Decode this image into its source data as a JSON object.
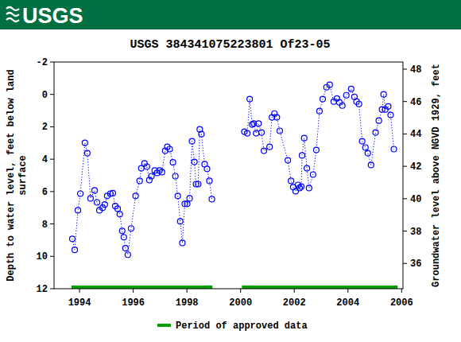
{
  "header": {
    "logo_text": "USGS"
  },
  "chart_data": {
    "type": "line",
    "title": "USGS 384341075223801 Of23-05",
    "y_label": [
      "Depth to water level, feet below land",
      "surface"
    ],
    "y2_label": "Groundwater level above NGVD 1929, feet",
    "xlim": [
      1993.05,
      2006.05
    ],
    "xticks": [
      1994,
      1996,
      1998,
      2000,
      2002,
      2004,
      2006
    ],
    "ylim": [
      12,
      -2
    ],
    "yticks": [
      -2,
      0,
      2,
      4,
      6,
      8,
      10,
      12
    ],
    "y2lim": [
      34.44,
      48.44
    ],
    "y2ticks": [
      36,
      38,
      40,
      42,
      44,
      46,
      48
    ],
    "legend": "bottom",
    "x": [
      1993.73,
      1993.82,
      1993.94,
      1994.03,
      1994.2,
      1994.29,
      1994.41,
      1994.56,
      1994.65,
      1994.74,
      1994.86,
      1994.94,
      1995.03,
      1995.15,
      1995.24,
      1995.33,
      1995.42,
      1995.5,
      1995.59,
      1995.65,
      1995.71,
      1995.8,
      1995.92,
      1996.09,
      1996.24,
      1996.3,
      1996.42,
      1996.51,
      1996.6,
      1996.68,
      1996.8,
      1996.89,
      1996.98,
      1997.07,
      1997.19,
      1997.27,
      1997.36,
      1997.48,
      1997.57,
      1997.66,
      1997.75,
      1997.83,
      1997.92,
      1998.01,
      1998.1,
      1998.19,
      1998.28,
      1998.34,
      1998.42,
      1998.48,
      1998.54,
      1998.66,
      1998.75,
      1998.84,
      1998.93,
      1999.5,
      2000.14,
      2000.25,
      2000.34,
      2000.43,
      2000.49,
      2000.58,
      2000.67,
      2000.78,
      2000.87,
      2001.08,
      2001.17,
      2001.26,
      2001.35,
      2001.46,
      2001.76,
      2001.88,
      2001.96,
      2002.05,
      2002.14,
      2002.2,
      2002.26,
      2002.29,
      2002.37,
      2002.47,
      2002.55,
      2002.7,
      2002.82,
      2002.94,
      2003.06,
      2003.2,
      2003.32,
      2003.47,
      2003.59,
      2003.68,
      2003.79,
      2003.94,
      2004.12,
      2004.24,
      2004.32,
      2004.41,
      2004.53,
      2004.65,
      2004.74,
      2004.86,
      2005.03,
      2005.15,
      2005.27,
      2005.33,
      2005.39,
      2005.5,
      2005.59,
      2005.71
    ],
    "series": [
      {
        "color": "#0000ff",
        "marker": "circle",
        "line_style": "dotted",
        "values": [
          8.92,
          9.6,
          7.16,
          6.13,
          2.99,
          3.63,
          6.42,
          5.93,
          6.67,
          7.16,
          7.0,
          6.8,
          6.27,
          6.13,
          6.1,
          6.9,
          7.06,
          7.4,
          8.43,
          8.82,
          9.5,
          9.9,
          8.28,
          6.27,
          5.34,
          4.56,
          4.26,
          4.46,
          5.29,
          5.05,
          4.7,
          4.85,
          4.7,
          4.8,
          3.48,
          3.24,
          3.38,
          4.2,
          5.05,
          6.27,
          7.84,
          9.17,
          6.76,
          6.76,
          6.42,
          2.89,
          4.17,
          5.54,
          5.54,
          2.16,
          2.45,
          4.31,
          4.6,
          5.34,
          6.47,
          null,
          2.3,
          2.4,
          0.29,
          1.86,
          1.8,
          2.4,
          1.8,
          2.35,
          3.48,
          3.24,
          1.42,
          1.18,
          1.42,
          2.25,
          4.07,
          5.34,
          5.73,
          5.98,
          5.59,
          5.78,
          5.69,
          3.77,
          2.7,
          4.56,
          5.78,
          4.95,
          3.43,
          1.03,
          0.29,
          -0.44,
          -0.59,
          0.44,
          0.25,
          0.49,
          0.69,
          0.05,
          -0.34,
          0.15,
          0.44,
          0.59,
          2.89,
          3.28,
          3.63,
          4.36,
          2.35,
          1.62,
          0.93,
          0.0,
          0.93,
          0.74,
          1.27,
          3.38
        ]
      },
      {
        "name": "Period of approved data",
        "color": "#00a000",
        "line_style": "solid",
        "x": [
          1993.7,
          1998.95,
          1999.5,
          2000.05,
          2005.85
        ],
        "values": [
          11.9,
          11.9,
          null,
          11.9,
          11.9
        ]
      }
    ]
  }
}
